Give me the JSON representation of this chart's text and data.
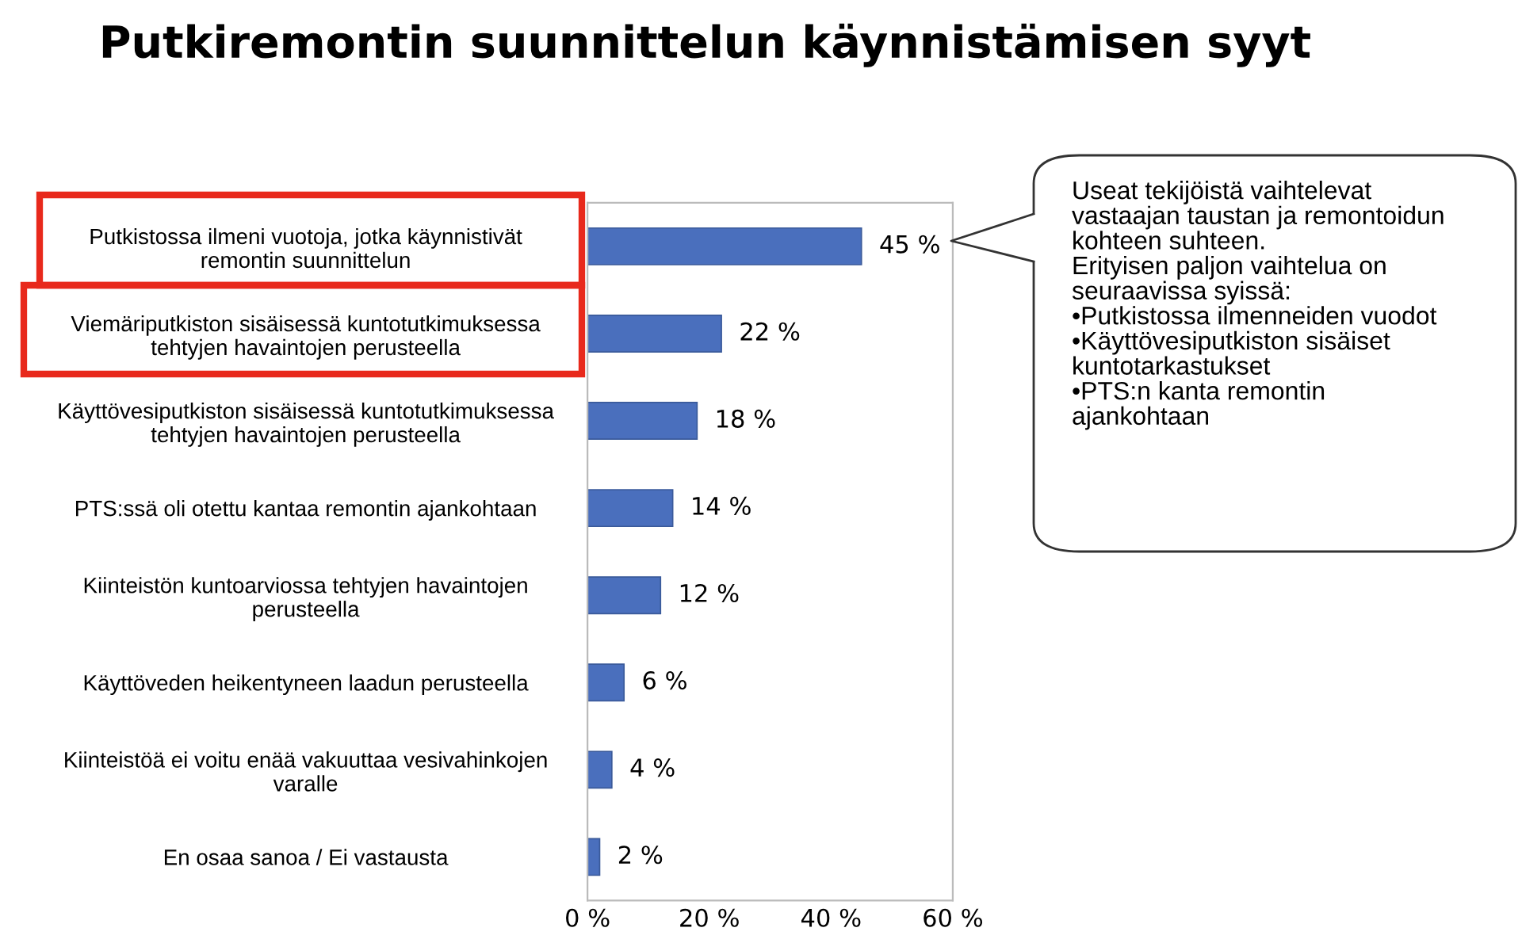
{
  "chart_data": {
    "type": "bar",
    "orientation": "horizontal",
    "title": "Putkiremontin suunnittelun käynnistämisen syyt",
    "categories": [
      "Putkistossa ilmeni vuotoja, jotka käynnistivät\nremontin suunnittelun",
      "Viemäriputkiston sisäisessä kuntotutkimuksessa\ntehtyjen havaintojen perusteella",
      "Käyttövesiputkiston sisäisessä kuntotutkimuksessa\ntehtyjen havaintojen perusteella",
      "PTS:ssä oli otettu kantaa remontin ajankohtaan",
      "Kiinteistön kuntoarviossa tehtyjen havaintojen\nperusteella",
      "Käyttöveden heikentyneen laadun perusteella",
      "Kiinteistöä ei voitu enää vakuuttaa vesivahinkojen\nvaralle",
      "En osaa sanoa / Ei vastausta"
    ],
    "values": [
      45,
      22,
      18,
      14,
      12,
      6,
      4,
      2
    ],
    "value_labels": [
      "45 %",
      "22 %",
      "18 %",
      "14 %",
      "12 %",
      "6 %",
      "4 %",
      "2 %"
    ],
    "color": "#4a6fbd",
    "xlim": [
      0,
      60
    ],
    "xticks": [
      {
        "value": 0,
        "label": "0 %"
      },
      {
        "value": 20,
        "label": "20 %"
      },
      {
        "value": 40,
        "label": "40 %"
      },
      {
        "value": 60,
        "label": "60 %"
      }
    ],
    "grid": false,
    "legend": false,
    "annotations": [
      "Useat tekijöistä vaihtelevat\nvastaajan taustan ja remontoidun\nkohteen suhteen.\nErityisen paljon vaihtelua on\nseuraavissa syissä:\n•Putkistossa ilmenneiden vuodot\n•Käyttövesiputkiston sisäiset\nkuntotarkastukset\n•PTS:n kanta remontin\najankohtaan"
    ]
  }
}
